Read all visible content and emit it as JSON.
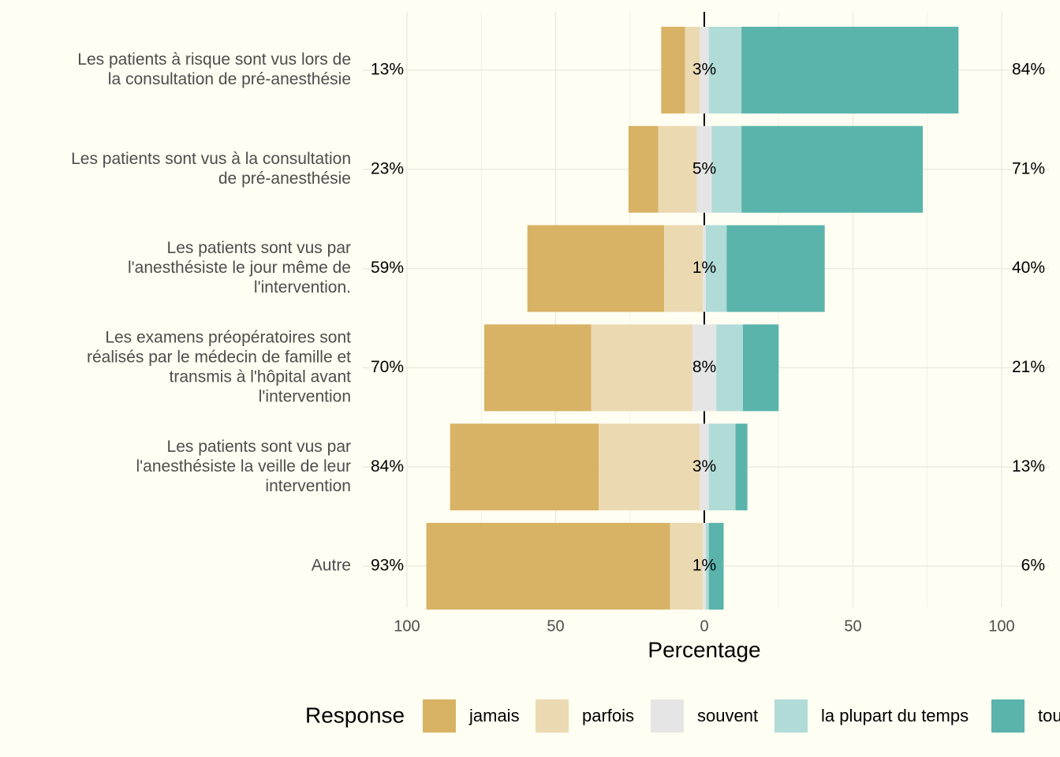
{
  "chart_data": {
    "type": "diverging_stacked_bar",
    "categories": [
      [
        "Les patients à risque sont vus lors de",
        "la consultation de pré-anesthésie"
      ],
      [
        "Les patients sont vus à la consultation",
        "de pré-anesthésie"
      ],
      [
        "Les patients sont vus par",
        "l'anesthésiste le jour même de",
        "l'intervention."
      ],
      [
        "Les examens préopératoires sont",
        "réalisés par le médecin de famille et",
        "transmis à l'hôpital avant",
        "l'intervention"
      ],
      [
        "Les patients sont vus par",
        "l'anesthésiste la veille de leur",
        "intervention"
      ],
      [
        "Autre"
      ]
    ],
    "series": [
      {
        "name": "jamais",
        "color": "#d8b365",
        "side": "left",
        "values": [
          8,
          10,
          46,
          36,
          50,
          82
        ]
      },
      {
        "name": "parfois",
        "color": "#ebd9b2",
        "side": "left",
        "values": [
          5,
          13,
          13,
          34,
          34,
          11
        ]
      },
      {
        "name": "souvent",
        "color": "#e5e5e5",
        "side": "center",
        "values": [
          3,
          5,
          1,
          8,
          3,
          1
        ]
      },
      {
        "name": "la plupart du temps",
        "color": "#b0dbd7",
        "side": "right",
        "values": [
          11,
          10,
          7,
          9,
          9,
          1
        ]
      },
      {
        "name": "toujours",
        "color": "#5ab4ac",
        "side": "right",
        "values": [
          73,
          61,
          33,
          12,
          4,
          5
        ]
      }
    ],
    "left_labels": [
      "13%",
      "23%",
      "59%",
      "70%",
      "84%",
      "93%"
    ],
    "center_labels": [
      "3%",
      "5%",
      "1%",
      "8%",
      "3%",
      "1%"
    ],
    "right_labels": [
      "84%",
      "71%",
      "40%",
      "21%",
      "13%",
      "6%"
    ],
    "xlabel": "Percentage",
    "legend_title": "Response",
    "xlim": [
      -100,
      100
    ],
    "xticks": [
      {
        "value": -100,
        "label": "100"
      },
      {
        "value": -50,
        "label": "50"
      },
      0,
      50,
      100
    ],
    "minor_xticks": [
      -75,
      -25,
      25,
      75
    ],
    "grid": true,
    "legend": "bottom"
  }
}
